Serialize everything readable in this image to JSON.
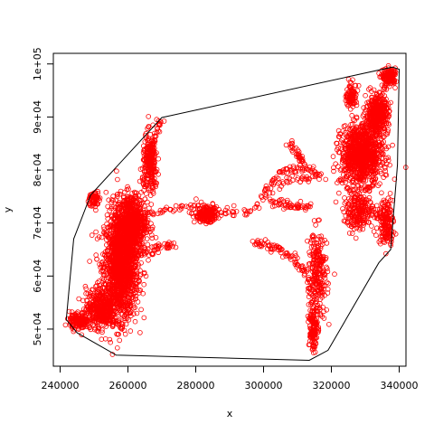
{
  "chart_data": {
    "type": "scatter",
    "title": "",
    "xlabel": "x",
    "ylabel": "y",
    "xlim": [
      238000,
      342000
    ],
    "ylim": [
      43000,
      102000
    ],
    "x_ticks": [
      240000,
      260000,
      280000,
      300000,
      320000,
      340000
    ],
    "x_tick_labels": [
      "240000",
      "260000",
      "280000",
      "300000",
      "320000",
      "340000"
    ],
    "y_ticks": [
      50000,
      60000,
      70000,
      80000,
      90000,
      100000
    ],
    "y_tick_labels": [
      "5e+04",
      "6e+04",
      "7e+04",
      "8e+04",
      "9e+04",
      "1e+05"
    ],
    "grid": false,
    "point_color": "#ff0000",
    "hull_color": "#000000",
    "hull": [
      [
        241800,
        51800
      ],
      [
        245000,
        49300
      ],
      [
        256500,
        45100
      ],
      [
        313500,
        44100
      ],
      [
        319000,
        46000
      ],
      [
        334000,
        62500
      ],
      [
        337500,
        65000
      ],
      [
        339500,
        81000
      ],
      [
        340000,
        99000
      ],
      [
        338000,
        99400
      ],
      [
        270000,
        89900
      ],
      [
        249000,
        75300
      ],
      [
        244000,
        67000
      ]
    ],
    "point_clusters": [
      {
        "center": [
          258000,
          62000
        ],
        "spread": [
          4500,
          9000
        ],
        "count": 1500
      },
      {
        "center": [
          261000,
          70000
        ],
        "spread": [
          4000,
          5000
        ],
        "count": 700
      },
      {
        "center": [
          252000,
          54000
        ],
        "spread": [
          4000,
          3500
        ],
        "count": 400
      },
      {
        "center": [
          245500,
          51500
        ],
        "spread": [
          2500,
          1500
        ],
        "count": 150
      },
      {
        "center": [
          266500,
          81000
        ],
        "spread": [
          2000,
          5000
        ],
        "count": 250
      },
      {
        "center": [
          329000,
          83000
        ],
        "spread": [
          5500,
          5000
        ],
        "count": 1000
      },
      {
        "center": [
          333500,
          90500
        ],
        "spread": [
          3000,
          3000
        ],
        "count": 400
      },
      {
        "center": [
          326000,
          94000
        ],
        "spread": [
          1500,
          2000
        ],
        "count": 100
      },
      {
        "center": [
          337000,
          97500
        ],
        "spread": [
          1800,
          1500
        ],
        "count": 120
      },
      {
        "center": [
          283000,
          71500
        ],
        "spread": [
          3000,
          1200
        ],
        "count": 200
      },
      {
        "center": [
          316000,
          60000
        ],
        "spread": [
          2500,
          8000
        ],
        "count": 250
      },
      {
        "center": [
          328000,
          72000
        ],
        "spread": [
          4000,
          3000
        ],
        "count": 200
      },
      {
        "center": [
          336000,
          70500
        ],
        "spread": [
          2000,
          4000
        ],
        "count": 150
      },
      {
        "center": [
          314500,
          50000
        ],
        "spread": [
          1200,
          4000
        ],
        "count": 120
      },
      {
        "center": [
          250000,
          74500
        ],
        "spread": [
          1500,
          1500
        ],
        "count": 60
      }
    ],
    "point_paths": [
      [
        [
          264000,
          71000
        ],
        [
          272000,
          72500
        ],
        [
          280000,
          73500
        ],
        [
          288000,
          72000
        ],
        [
          296000,
          72000
        ],
        [
          304000,
          77500
        ],
        [
          312000,
          78500
        ],
        [
          318000,
          79000
        ]
      ],
      [
        [
          297000,
          66500
        ],
        [
          301000,
          65800
        ],
        [
          305000,
          65000
        ],
        [
          309000,
          63000
        ],
        [
          312500,
          60500
        ],
        [
          314000,
          56000
        ]
      ],
      [
        [
          302000,
          74000
        ],
        [
          306000,
          73500
        ],
        [
          310000,
          73000
        ],
        [
          314000,
          73200
        ]
      ],
      [
        [
          300000,
          76000
        ],
        [
          305000,
          79500
        ],
        [
          310000,
          80500
        ],
        [
          316000,
          80000
        ]
      ],
      [
        [
          308000,
          85000
        ],
        [
          310000,
          83000
        ],
        [
          312000,
          81000
        ]
      ],
      [
        [
          266000,
          80000
        ],
        [
          268000,
          86000
        ],
        [
          270000,
          89900
        ]
      ],
      [
        [
          322000,
          78000
        ],
        [
          330000,
          74000
        ],
        [
          336000,
          70000
        ],
        [
          338000,
          66000
        ]
      ],
      [
        [
          332000,
          92000
        ],
        [
          336000,
          96000
        ],
        [
          339000,
          98500
        ]
      ],
      [
        [
          261000,
          64000
        ],
        [
          266000,
          64500
        ],
        [
          270000,
          65500
        ],
        [
          274000,
          66000
        ]
      ]
    ]
  }
}
